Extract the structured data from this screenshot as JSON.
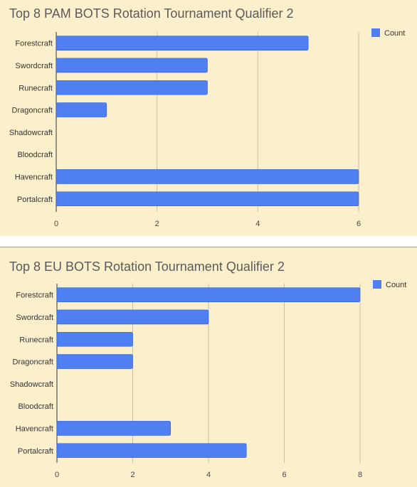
{
  "chart_data": [
    {
      "type": "bar",
      "orientation": "horizontal",
      "title": "Top 8 PAM BOTS Rotation Tournament Qualifier 2",
      "categories": [
        "Forestcraft",
        "Swordcraft",
        "Runecraft",
        "Dragoncraft",
        "Shadowcraft",
        "Bloodcraft",
        "Havencraft",
        "Portalcraft"
      ],
      "series": [
        {
          "name": "Count",
          "values": [
            5,
            3,
            3,
            1,
            0,
            0,
            6,
            6
          ]
        }
      ],
      "xlim": [
        0,
        6
      ],
      "xticks": [
        "0",
        "2",
        "4",
        "6"
      ],
      "grid": true,
      "legend": "top-right",
      "bar_color": "#4f7ff0"
    },
    {
      "type": "bar",
      "orientation": "horizontal",
      "title": "Top 8 EU BOTS Rotation Tournament Qualifier 2",
      "categories": [
        "Forestcraft",
        "Swordcraft",
        "Runecraft",
        "Dragoncraft",
        "Shadowcraft",
        "Bloodcraft",
        "Havencraft",
        "Portalcraft"
      ],
      "series": [
        {
          "name": "Count",
          "values": [
            8,
            4,
            2,
            2,
            0,
            0,
            3,
            5
          ]
        }
      ],
      "xlim": [
        0,
        8
      ],
      "xticks": [
        "0",
        "2",
        "4",
        "6",
        "8"
      ],
      "grid": true,
      "legend": "top-right",
      "bar_color": "#4f7ff0"
    }
  ]
}
